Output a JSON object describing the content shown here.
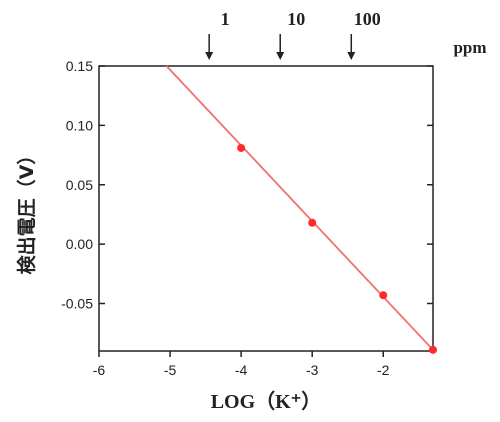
{
  "chart_data": {
    "type": "scatter",
    "xlabel": "LOG（K⁺）",
    "ylabel": "検出電圧（V）",
    "xlim": [
      -6,
      -1.3
    ],
    "ylim": [
      -0.09,
      0.15
    ],
    "x_ticks": [
      -6,
      -5,
      -4,
      -3,
      -2
    ],
    "x_tick_labels": [
      "-6",
      "-5",
      "-4",
      "-3",
      "-2"
    ],
    "y_ticks": [
      0.15,
      0.1,
      0.05,
      0.0,
      -0.05
    ],
    "y_tick_labels": [
      "0.15",
      "0.10",
      "0.05",
      "0.00",
      "-0.05"
    ],
    "top_axis": {
      "unit": "ppm",
      "markers": [
        {
          "label": "1",
          "x": -4.45
        },
        {
          "label": "10",
          "x": -3.45
        },
        {
          "label": "100",
          "x": -2.45
        }
      ]
    },
    "series": [
      {
        "color": "#ff2a2a",
        "points": [
          {
            "x": -4.0,
            "y": 0.081
          },
          {
            "x": -3.0,
            "y": 0.018
          },
          {
            "x": -2.0,
            "y": -0.043
          },
          {
            "x": -1.3,
            "y": -0.089
          }
        ]
      }
    ],
    "fit_line": {
      "color": "#f07070",
      "x1": -5.05,
      "y1": 0.15,
      "x2": -1.3,
      "y2": -0.089
    },
    "grid": false
  }
}
